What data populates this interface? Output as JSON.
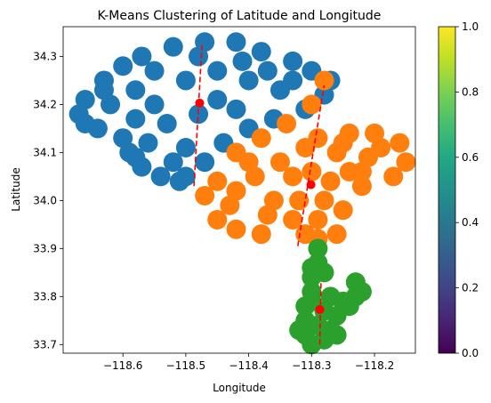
{
  "chart_data": {
    "type": "scatter",
    "title": "K-Means Clustering of Latitude and Longitude",
    "xlabel": "Longitude",
    "ylabel": "Latitude",
    "xlim": [
      -118.695,
      -118.135
    ],
    "ylim": [
      33.682,
      34.362
    ],
    "xticks": [
      -118.6,
      -118.5,
      -118.4,
      -118.3,
      -118.2
    ],
    "xtick_labels": [
      "−118.6",
      "−118.5",
      "−118.4",
      "−118.3",
      "−118.2"
    ],
    "yticks": [
      33.7,
      33.8,
      33.9,
      34.0,
      34.1,
      34.2,
      34.3
    ],
    "ytick_labels": [
      "33.7",
      "33.8",
      "33.9",
      "34.0",
      "34.1",
      "34.2",
      "34.3"
    ],
    "colorbar": {
      "range": [
        0.0,
        1.0
      ],
      "ticks": [
        0.0,
        0.2,
        0.4,
        0.6,
        0.8,
        1.0
      ],
      "tick_labels": [
        "0.0",
        "0.2",
        "0.4",
        "0.6",
        "0.8",
        "1.0"
      ],
      "colormap": "viridis"
    },
    "clusters": [
      {
        "color": "#1f77b4",
        "points": [
          [
            -118.67,
            34.18
          ],
          [
            -118.66,
            34.21
          ],
          [
            -118.63,
            34.25
          ],
          [
            -118.6,
            34.28
          ],
          [
            -118.57,
            34.3
          ],
          [
            -118.52,
            34.32
          ],
          [
            -118.47,
            34.33
          ],
          [
            -118.42,
            34.33
          ],
          [
            -118.38,
            34.31
          ],
          [
            -118.33,
            34.29
          ],
          [
            -118.3,
            34.27
          ],
          [
            -118.27,
            34.25
          ],
          [
            -118.28,
            34.22
          ],
          [
            -118.31,
            34.19
          ],
          [
            -118.36,
            34.17
          ],
          [
            -118.4,
            34.15
          ],
          [
            -118.44,
            34.12
          ],
          [
            -118.47,
            34.08
          ],
          [
            -118.5,
            34.05
          ],
          [
            -118.51,
            34.04
          ],
          [
            -118.54,
            34.05
          ],
          [
            -118.57,
            34.07
          ],
          [
            -118.58,
            34.09
          ],
          [
            -118.6,
            34.13
          ],
          [
            -118.64,
            34.15
          ],
          [
            -118.66,
            34.16
          ],
          [
            -118.55,
            34.2
          ],
          [
            -118.5,
            34.25
          ],
          [
            -118.45,
            34.27
          ],
          [
            -118.4,
            34.25
          ],
          [
            -118.35,
            34.23
          ],
          [
            -118.48,
            34.18
          ],
          [
            -118.58,
            34.23
          ],
          [
            -118.53,
            34.16
          ],
          [
            -118.45,
            34.21
          ],
          [
            -118.42,
            34.19
          ],
          [
            -118.37,
            34.27
          ],
          [
            -118.55,
            34.27
          ],
          [
            -118.62,
            34.2
          ],
          [
            -118.5,
            34.11
          ],
          [
            -118.56,
            34.12
          ],
          [
            -118.59,
            34.1
          ],
          [
            -118.52,
            34.08
          ],
          [
            -118.48,
            34.3
          ],
          [
            -118.41,
            34.29
          ],
          [
            -118.33,
            34.25
          ],
          [
            -118.58,
            34.17
          ],
          [
            -118.63,
            34.23
          ]
        ]
      },
      {
        "color": "#ff7f0e",
        "points": [
          [
            -118.28,
            34.25
          ],
          [
            -118.3,
            34.2
          ],
          [
            -118.34,
            34.16
          ],
          [
            -118.38,
            34.13
          ],
          [
            -118.42,
            34.1
          ],
          [
            -118.45,
            34.04
          ],
          [
            -118.47,
            34.01
          ],
          [
            -118.45,
            33.96
          ],
          [
            -118.42,
            33.94
          ],
          [
            -118.38,
            33.93
          ],
          [
            -118.33,
            33.96
          ],
          [
            -118.31,
            33.93
          ],
          [
            -118.29,
            33.92
          ],
          [
            -118.26,
            33.93
          ],
          [
            -118.25,
            33.98
          ],
          [
            -118.22,
            34.03
          ],
          [
            -118.17,
            34.05
          ],
          [
            -118.15,
            34.08
          ],
          [
            -118.16,
            34.12
          ],
          [
            -118.2,
            34.14
          ],
          [
            -118.24,
            34.14
          ],
          [
            -118.26,
            34.1
          ],
          [
            -118.29,
            34.13
          ],
          [
            -118.31,
            34.11
          ],
          [
            -118.35,
            34.08
          ],
          [
            -118.39,
            34.05
          ],
          [
            -118.42,
            34.02
          ],
          [
            -118.36,
            34.0
          ],
          [
            -118.33,
            34.05
          ],
          [
            -118.3,
            34.06
          ],
          [
            -118.27,
            34.04
          ],
          [
            -118.24,
            34.06
          ],
          [
            -118.21,
            34.09
          ],
          [
            -118.28,
            34.0
          ],
          [
            -118.32,
            34.0
          ],
          [
            -118.29,
            33.96
          ],
          [
            -118.37,
            33.97
          ],
          [
            -118.43,
            33.99
          ],
          [
            -118.4,
            34.08
          ],
          [
            -118.25,
            34.12
          ],
          [
            -118.19,
            34.11
          ],
          [
            -118.22,
            34.06
          ]
        ]
      },
      {
        "color": "#2ca02c",
        "points": [
          [
            -118.29,
            33.9
          ],
          [
            -118.29,
            33.87
          ],
          [
            -118.3,
            33.84
          ],
          [
            -118.3,
            33.81
          ],
          [
            -118.31,
            33.78
          ],
          [
            -118.31,
            33.75
          ],
          [
            -118.31,
            33.72
          ],
          [
            -118.3,
            33.7
          ],
          [
            -118.28,
            33.71
          ],
          [
            -118.27,
            33.73
          ],
          [
            -118.26,
            33.76
          ],
          [
            -118.25,
            33.79
          ],
          [
            -118.23,
            33.8
          ],
          [
            -118.22,
            33.81
          ],
          [
            -118.23,
            33.83
          ],
          [
            -118.27,
            33.8
          ],
          [
            -118.28,
            33.77
          ],
          [
            -118.29,
            33.74
          ],
          [
            -118.26,
            33.72
          ],
          [
            -118.3,
            33.79
          ],
          [
            -118.28,
            33.85
          ],
          [
            -118.24,
            33.78
          ],
          [
            -118.3,
            33.86
          ],
          [
            -118.32,
            33.73
          ]
        ]
      }
    ],
    "centroids": {
      "color": "#ff0000",
      "points": [
        [
          -118.478,
          34.203
        ],
        [
          -118.301,
          34.033
        ],
        [
          -118.287,
          33.773
        ]
      ]
    },
    "dashed_lines": {
      "color": "#ff0000",
      "segments": [
        [
          [
            -118.487,
            34.03
          ],
          [
            -118.474,
            34.33
          ]
        ],
        [
          [
            -118.322,
            33.905
          ],
          [
            -118.28,
            34.24
          ]
        ],
        [
          [
            -118.287,
            33.7
          ],
          [
            -118.285,
            33.83
          ]
        ]
      ]
    }
  }
}
